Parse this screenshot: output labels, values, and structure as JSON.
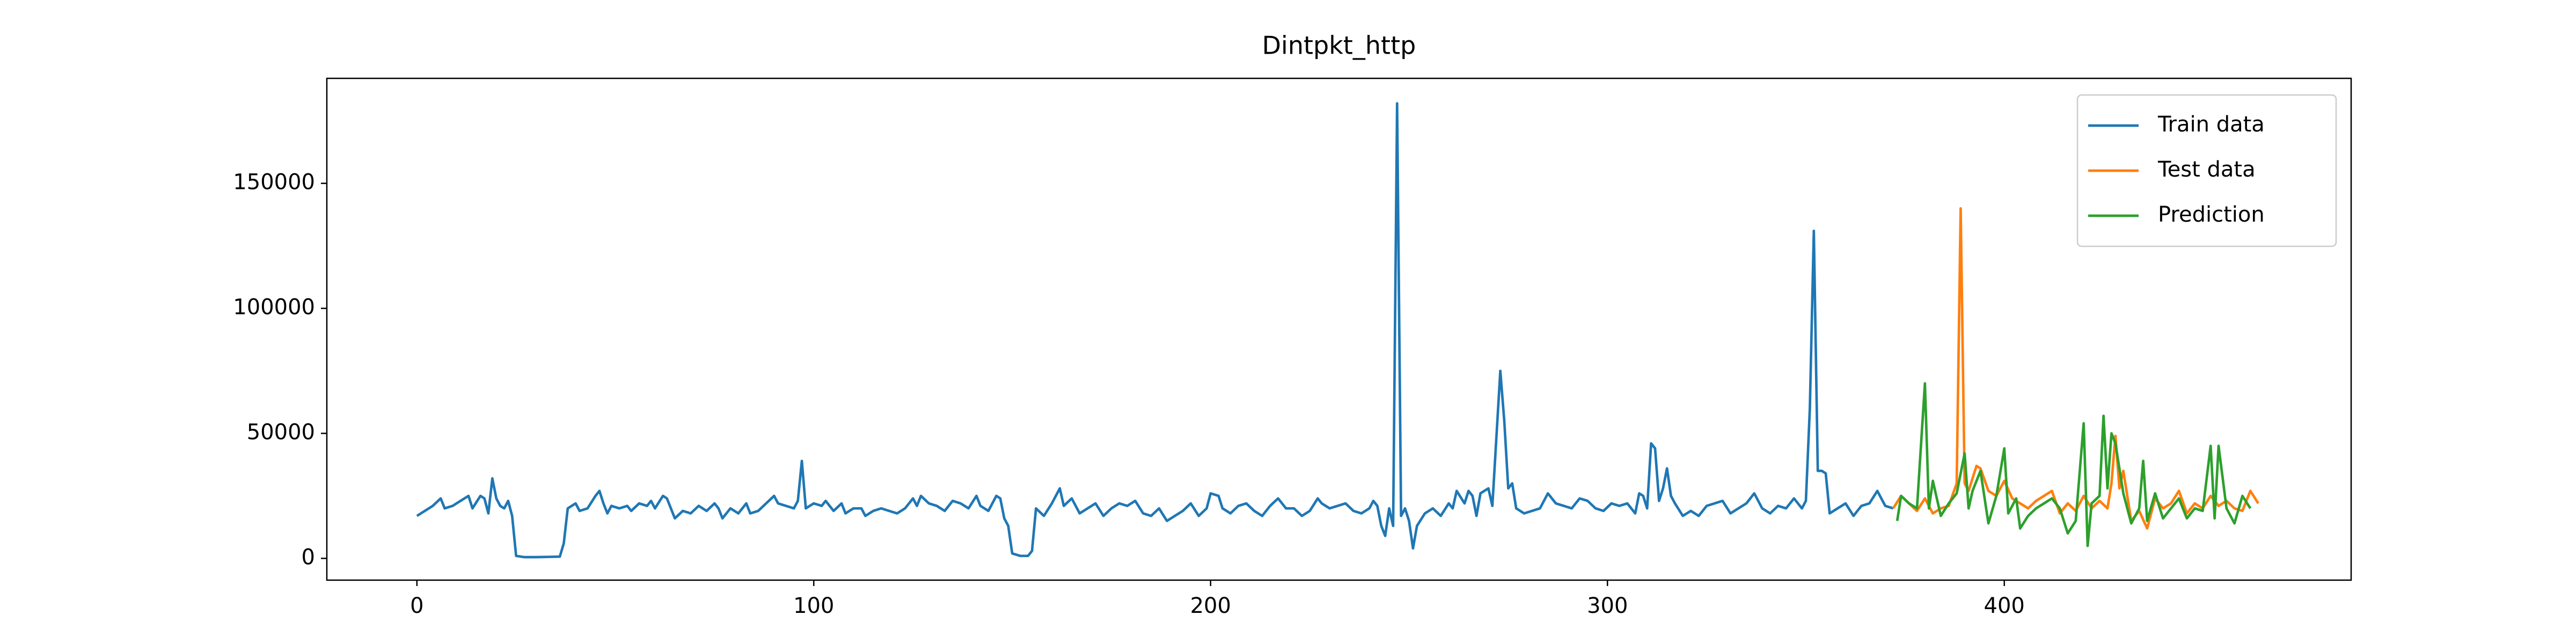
{
  "chart_data": {
    "type": "line",
    "title": "Dintpkt_http",
    "xlim": [
      -22.7,
      487.4
    ],
    "xticks": [
      0,
      100,
      200,
      300,
      400
    ],
    "ylim": [
      -8700,
      192000
    ],
    "yticks": [
      0,
      50000,
      100000,
      150000
    ],
    "grid": false,
    "legend": "upper right",
    "series": [
      {
        "name": "Train data",
        "color": "#1f77b4",
        "x": [
          0,
          2,
          4,
          6,
          7,
          9,
          11,
          13,
          14,
          16,
          17,
          18,
          19,
          20,
          21,
          22,
          23,
          24,
          25,
          27,
          30,
          33,
          36,
          37,
          38,
          40,
          41,
          43,
          45,
          46,
          47,
          48,
          49,
          51,
          53,
          54,
          56,
          58,
          59,
          60,
          62,
          63,
          64,
          65,
          67,
          69,
          71,
          73,
          75,
          76,
          77,
          79,
          81,
          83,
          84,
          86,
          88,
          90,
          91,
          93,
          95,
          96,
          97,
          98,
          100,
          102,
          103,
          105,
          107,
          108,
          110,
          112,
          113,
          115,
          117,
          119,
          121,
          123,
          125,
          126,
          127,
          129,
          131,
          133,
          135,
          137,
          139,
          141,
          142,
          144,
          146,
          147,
          148,
          149,
          150,
          152,
          154,
          155,
          156,
          158,
          160,
          162,
          163,
          165,
          167,
          169,
          171,
          173,
          175,
          177,
          179,
          181,
          183,
          185,
          187,
          189,
          191,
          193,
          195,
          197,
          199,
          200,
          202,
          203,
          205,
          207,
          209,
          211,
          213,
          215,
          217,
          219,
          221,
          223,
          225,
          227,
          228,
          230,
          232,
          234,
          236,
          238,
          240,
          241,
          242,
          243,
          244,
          245,
          246,
          247,
          248,
          249,
          250,
          251,
          252,
          254,
          256,
          258,
          260,
          261,
          262,
          264,
          265,
          266,
          267,
          268,
          270,
          271,
          273,
          274,
          275,
          276,
          277,
          279,
          281,
          283,
          285,
          287,
          289,
          291,
          293,
          295,
          297,
          299,
          301,
          303,
          305,
          307,
          308,
          309,
          310,
          311,
          312,
          313,
          314,
          315,
          316,
          317,
          319,
          321,
          323,
          325,
          327,
          329,
          331,
          333,
          335,
          337,
          339,
          341,
          343,
          345,
          347,
          349,
          350,
          351,
          352,
          353,
          354,
          355,
          356,
          358,
          360,
          362,
          364,
          366,
          368,
          370,
          372
        ],
        "values": [
          17000,
          19000,
          21000,
          24000,
          20000,
          21000,
          23000,
          25000,
          20000,
          25000,
          24000,
          18000,
          32000,
          24000,
          21000,
          20000,
          23000,
          17000,
          1000,
          500,
          500,
          600,
          700,
          6000,
          20000,
          22000,
          19000,
          20000,
          25000,
          27000,
          22000,
          18000,
          21000,
          20000,
          21000,
          19000,
          22000,
          21000,
          23000,
          20000,
          25000,
          24000,
          20000,
          16000,
          19000,
          18000,
          21000,
          19000,
          22000,
          20000,
          16000,
          20000,
          18000,
          22000,
          18000,
          19000,
          22000,
          25000,
          22000,
          21000,
          20000,
          23000,
          39000,
          20000,
          22000,
          21000,
          23000,
          19000,
          22000,
          18000,
          20000,
          20000,
          17000,
          19000,
          20000,
          19000,
          18000,
          20000,
          24000,
          21000,
          25000,
          22000,
          21000,
          19000,
          23000,
          22000,
          20000,
          25000,
          21000,
          19000,
          25000,
          24000,
          16000,
          13000,
          2000,
          1000,
          1000,
          3000,
          20000,
          17000,
          22000,
          28000,
          21000,
          24000,
          18000,
          20000,
          22000,
          17000,
          20000,
          22000,
          21000,
          23000,
          18000,
          17000,
          20000,
          15000,
          17000,
          19000,
          22000,
          17000,
          20000,
          26000,
          25000,
          20000,
          18000,
          21000,
          22000,
          19000,
          17000,
          21000,
          24000,
          20000,
          20000,
          17000,
          19000,
          24000,
          22000,
          20000,
          21000,
          22000,
          19000,
          18000,
          20000,
          23000,
          21000,
          13000,
          9000,
          20000,
          13000,
          182000,
          17000,
          20000,
          15000,
          4000,
          13000,
          18000,
          20000,
          17000,
          22000,
          20000,
          27000,
          22000,
          27000,
          25000,
          17000,
          26000,
          28000,
          21000,
          75000,
          55000,
          28000,
          30000,
          20000,
          18000,
          19000,
          20000,
          26000,
          22000,
          21000,
          20000,
          24000,
          23000,
          20000,
          19000,
          22000,
          21000,
          22000,
          18000,
          26000,
          25000,
          20000,
          46000,
          44000,
          23000,
          28000,
          36000,
          25000,
          22000,
          17000,
          19000,
          17000,
          21000,
          22000,
          23000,
          18000,
          20000,
          22000,
          26000,
          20000,
          18000,
          21000,
          20000,
          24000,
          20000,
          23000,
          60000,
          131000,
          35000,
          35000,
          34000,
          18000,
          20000,
          22000,
          17000,
          21000,
          22000,
          27000,
          21000,
          20000
        ]
      },
      {
        "name": "Test data",
        "color": "#ff7f0e",
        "x": [
          372,
          374,
          376,
          378,
          380,
          382,
          384,
          386,
          388,
          389,
          390,
          391,
          393,
          394,
          396,
          398,
          400,
          402,
          404,
          406,
          408,
          410,
          412,
          414,
          416,
          418,
          420,
          422,
          424,
          426,
          427,
          428,
          429,
          430,
          432,
          434,
          436,
          438,
          440,
          442,
          444,
          446,
          448,
          450,
          452,
          454,
          456,
          458,
          460,
          462,
          464
        ],
        "values": [
          20000,
          25000,
          22000,
          19000,
          24000,
          18000,
          20000,
          21000,
          30000,
          140000,
          30000,
          27000,
          37000,
          36000,
          27000,
          25000,
          31000,
          24000,
          22000,
          20000,
          23000,
          25000,
          27000,
          18000,
          22000,
          19000,
          25000,
          20000,
          23000,
          20000,
          30000,
          49000,
          28000,
          35000,
          15000,
          19000,
          12000,
          24000,
          20000,
          22000,
          27000,
          18000,
          22000,
          20000,
          25000,
          21000,
          23000,
          20000,
          19000,
          27000,
          22000
        ]
      },
      {
        "name": "Prediction",
        "color": "#2ca02c",
        "x": [
          373,
          374,
          376,
          378,
          380,
          381,
          382,
          384,
          386,
          388,
          390,
          391,
          392,
          394,
          396,
          398,
          400,
          401,
          403,
          404,
          406,
          408,
          410,
          412,
          414,
          416,
          418,
          420,
          421,
          422,
          424,
          425,
          426,
          427,
          428,
          430,
          432,
          434,
          435,
          436,
          438,
          440,
          442,
          444,
          446,
          448,
          450,
          452,
          453,
          454,
          456,
          458,
          460,
          462
        ],
        "values": [
          15000,
          25000,
          22000,
          20000,
          70000,
          20000,
          31000,
          17000,
          22000,
          26000,
          42000,
          20000,
          27000,
          35000,
          14000,
          25000,
          44000,
          18000,
          24000,
          12000,
          17000,
          20000,
          22000,
          24000,
          20000,
          10000,
          15000,
          54000,
          5000,
          22000,
          25000,
          57000,
          28000,
          50000,
          46000,
          26000,
          14000,
          20000,
          39000,
          15000,
          26000,
          16000,
          20000,
          24000,
          16000,
          20000,
          19000,
          45000,
          16000,
          45000,
          20000,
          14000,
          25000,
          20000
        ]
      }
    ]
  }
}
